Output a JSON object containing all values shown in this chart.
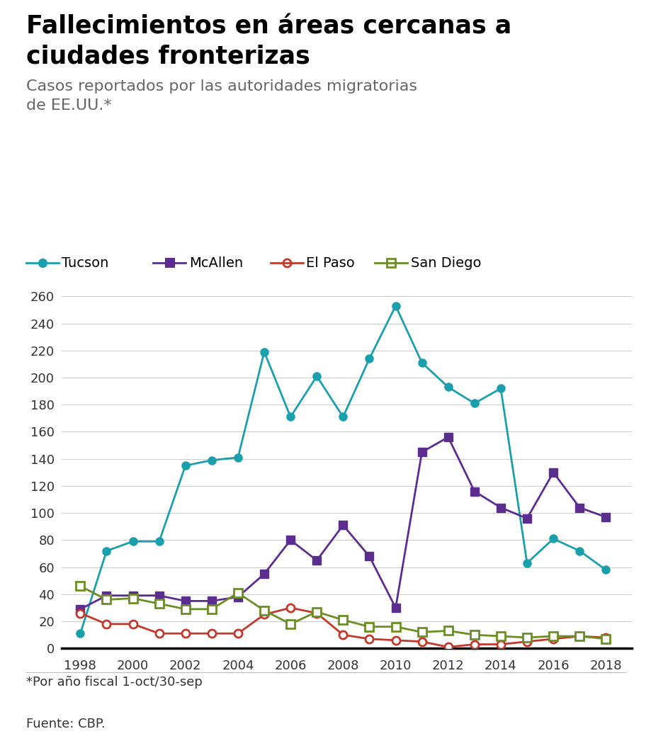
{
  "title_line1": "Fallecimientos en áreas cercanas a",
  "title_line2": "ciudades fronterizas",
  "subtitle": "Casos reportados por las autoridades migratorias\nde EE.UU.*",
  "footnote": "*Por año fiscal 1-oct/30-sep",
  "source": "Fuente: CBP.",
  "years": [
    1998,
    1999,
    2000,
    2001,
    2002,
    2003,
    2004,
    2005,
    2006,
    2007,
    2008,
    2009,
    2010,
    2011,
    2012,
    2013,
    2014,
    2015,
    2016,
    2017,
    2018
  ],
  "tucson": [
    11,
    72,
    79,
    79,
    135,
    139,
    141,
    219,
    171,
    201,
    171,
    214,
    253,
    211,
    193,
    181,
    192,
    63,
    81,
    72,
    58
  ],
  "mcallen": [
    29,
    39,
    39,
    39,
    35,
    35,
    38,
    55,
    80,
    65,
    91,
    68,
    30,
    145,
    156,
    116,
    104,
    96,
    130,
    104,
    97
  ],
  "elpaso": [
    26,
    18,
    18,
    11,
    11,
    11,
    11,
    25,
    30,
    26,
    10,
    7,
    6,
    5,
    1,
    3,
    3,
    5,
    7,
    9,
    8
  ],
  "sandiego": [
    46,
    36,
    37,
    33,
    29,
    29,
    41,
    28,
    18,
    27,
    21,
    16,
    16,
    12,
    13,
    10,
    9,
    8,
    9,
    9,
    7
  ],
  "tucson_color": "#1a9fac",
  "mcallen_color": "#5b2d8e",
  "elpaso_color": "#c0392b",
  "sandiego_color": "#6b8e23",
  "ylim": [
    0,
    260
  ],
  "yticks": [
    0,
    20,
    40,
    60,
    80,
    100,
    120,
    140,
    160,
    180,
    200,
    220,
    240,
    260
  ],
  "xticks": [
    1998,
    2000,
    2002,
    2004,
    2006,
    2008,
    2010,
    2012,
    2014,
    2016,
    2018
  ],
  "background_color": "#ffffff",
  "title_fontsize": 25,
  "subtitle_fontsize": 16,
  "legend_fontsize": 14,
  "tick_fontsize": 13,
  "footnote_fontsize": 13,
  "source_fontsize": 13
}
